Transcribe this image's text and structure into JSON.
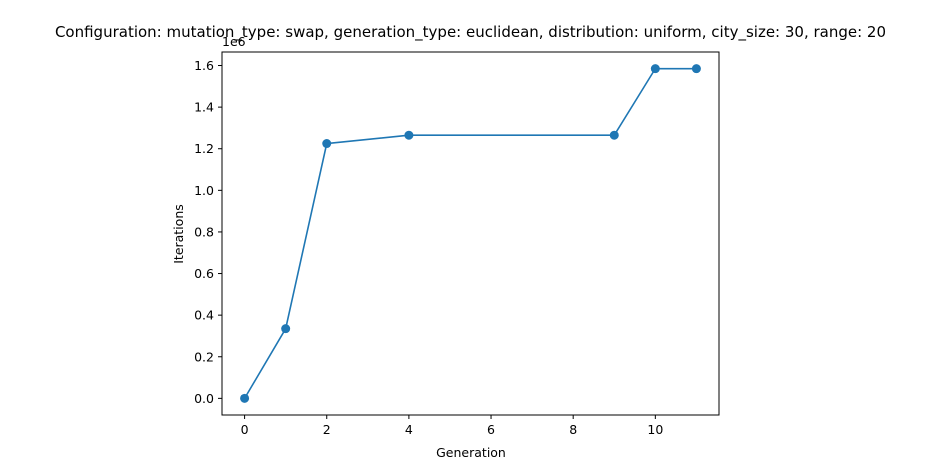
{
  "chart_data": {
    "type": "line",
    "title": "Configuration: mutation_type: swap, generation_type: euclidean, distribution: uniform, city_size: 30, range: 20",
    "xlabel": "Generation",
    "ylabel": "Iterations",
    "y_offset_label": "1e6",
    "y_scale_factor": 1000000,
    "xlim": [
      -0.55,
      11.55
    ],
    "ylim": [
      -80000,
      1665000
    ],
    "x_ticks": [
      0,
      2,
      4,
      6,
      8,
      10
    ],
    "x_tick_labels": [
      "0",
      "2",
      "4",
      "6",
      "8",
      "10"
    ],
    "y_ticks": [
      0,
      200000,
      400000,
      600000,
      800000,
      1000000,
      1200000,
      1400000,
      1600000
    ],
    "y_tick_labels": [
      "0.0",
      "0.2",
      "0.4",
      "0.6",
      "0.8",
      "1.0",
      "1.2",
      "1.4",
      "1.6"
    ],
    "grid": false,
    "legend": "none",
    "series": [
      {
        "x": [
          0,
          1,
          2,
          4,
          9,
          10,
          11
        ],
        "y": [
          0,
          335000,
          1225000,
          1265000,
          1265000,
          1585000,
          1585000
        ],
        "color": "#1f77b4",
        "marker": "circle"
      }
    ]
  }
}
